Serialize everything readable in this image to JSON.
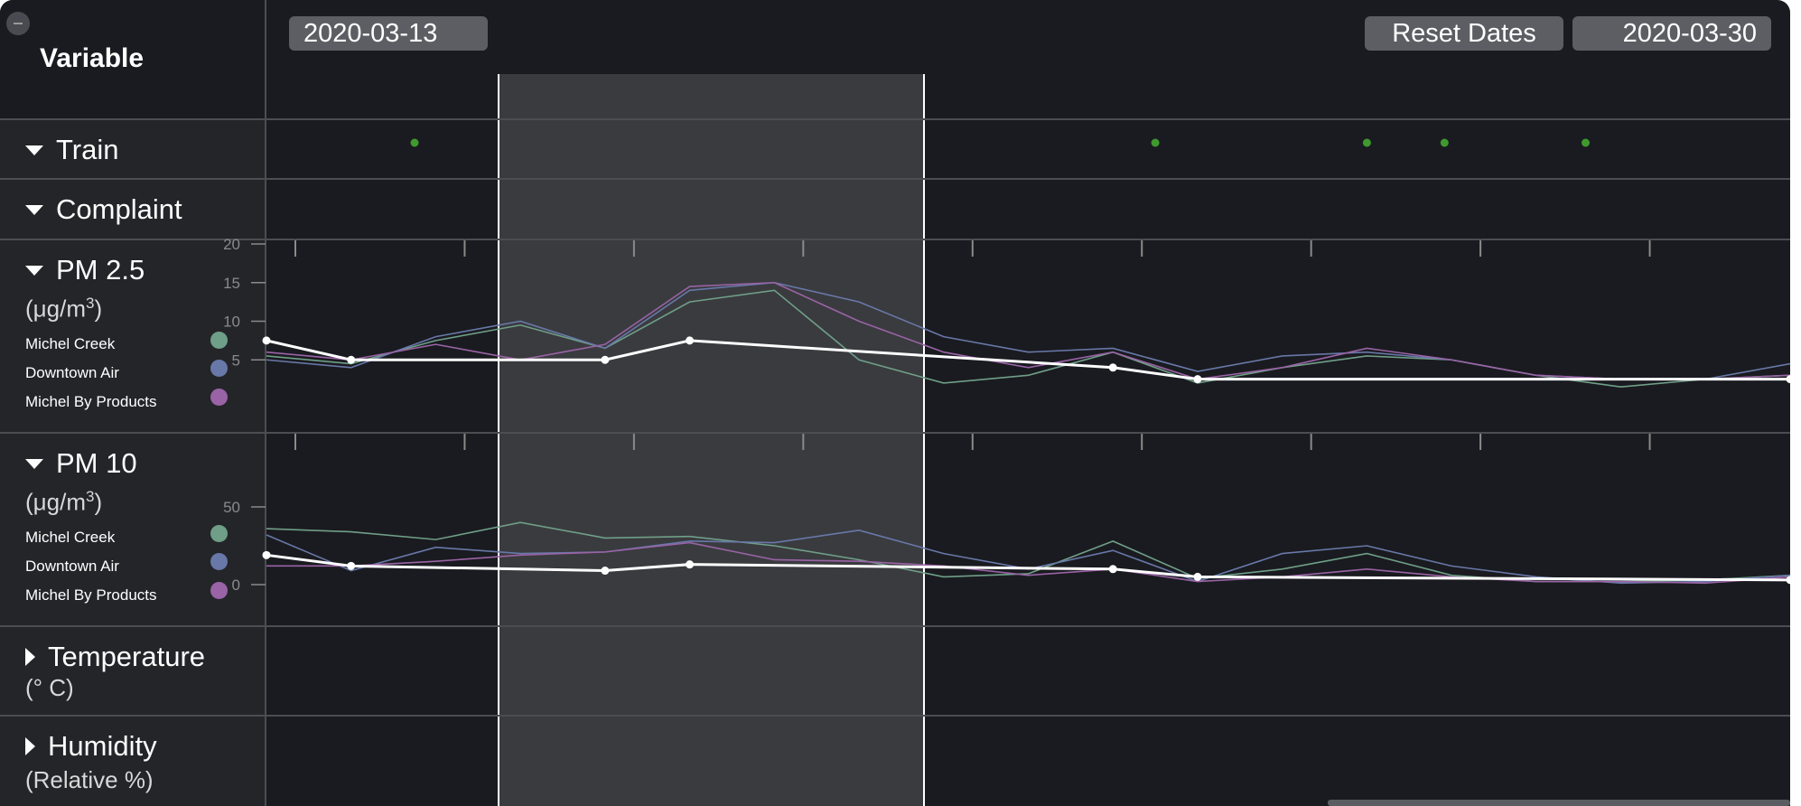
{
  "header": {
    "variable_title": "Variable",
    "start_date": "2020-03-13",
    "end_date": "2020-03-30",
    "reset_label": "Reset Dates"
  },
  "rows": {
    "train": {
      "label": "Train",
      "expanded": true
    },
    "complaint": {
      "label": "Complaint",
      "expanded": true
    },
    "pm25": {
      "label": "PM 2.5",
      "unit_prefix": "(μg/m",
      "unit_sup": "3",
      "unit_suffix": ")",
      "expanded": true
    },
    "pm10": {
      "label": "PM 10",
      "unit_prefix": "(μg/m",
      "unit_sup": "3",
      "unit_suffix": ")",
      "expanded": true
    },
    "temperature": {
      "label": "Temperature",
      "unit": "(° C)",
      "expanded": false
    },
    "humidity": {
      "label": "Humidity",
      "unit": "(Relative %)",
      "expanded": false
    }
  },
  "legend": [
    {
      "name": "Michel Creek",
      "color": "#6f9f88"
    },
    {
      "name": "Downtown Air",
      "color": "#6878a8"
    },
    {
      "name": "Michel By Products",
      "color": "#9a63a6"
    }
  ],
  "colors": {
    "average": "#ffffff",
    "train_dot": "#3f9a2e",
    "brush": "#3a3b3f"
  },
  "chart_data": [
    {
      "type": "scatter",
      "name_in_ui": "Train",
      "x": [
        "2020-03-13T18:00",
        "2020-03-22T12:00",
        "2020-03-25T00:00",
        "2020-03-25T22:00",
        "2020-03-27T14:00"
      ],
      "y": [
        1,
        1,
        1,
        1,
        1
      ]
    },
    {
      "type": "line",
      "name_in_ui": "PM 2.5",
      "ylim": [
        0,
        20
      ],
      "yticks": [
        5,
        10,
        15,
        20
      ],
      "x": [
        "2020-03-12",
        "2020-03-13",
        "2020-03-14",
        "2020-03-15",
        "2020-03-16",
        "2020-03-17",
        "2020-03-18",
        "2020-03-19",
        "2020-03-20",
        "2020-03-21",
        "2020-03-22",
        "2020-03-23",
        "2020-03-24",
        "2020-03-25",
        "2020-03-26",
        "2020-03-27",
        "2020-03-28",
        "2020-03-29",
        "2020-03-30"
      ],
      "series": [
        {
          "name": "Michel Creek",
          "values": [
            5.5,
            4.5,
            7.5,
            9.5,
            6.5,
            12.5,
            14,
            5,
            2,
            3,
            6,
            2,
            4,
            5.5,
            5,
            3,
            1.5,
            2.5,
            3
          ]
        },
        {
          "name": "Downtown Air",
          "values": [
            5,
            4,
            8,
            10,
            6.5,
            14,
            15,
            12.5,
            8,
            6,
            6.5,
            3.5,
            5.5,
            6,
            5,
            3,
            2.5,
            2.5,
            4.5
          ]
        },
        {
          "name": "Michel By Products",
          "values": [
            6,
            5,
            7,
            5,
            7,
            14.5,
            15,
            10,
            6,
            4,
            6,
            2.5,
            4,
            6.5,
            5,
            3,
            2.5,
            2.5,
            3
          ]
        }
      ],
      "average": {
        "x": [
          "2020-03-12",
          "2020-03-13",
          "2020-03-16",
          "2020-03-17",
          "2020-03-22",
          "2020-03-23",
          "2020-03-30"
        ],
        "values": [
          7.5,
          5,
          5,
          7.5,
          4,
          2.5,
          2.5
        ]
      }
    },
    {
      "type": "line",
      "name_in_ui": "PM 10",
      "yticks": [
        0,
        50
      ],
      "x": [
        "2020-03-12",
        "2020-03-13",
        "2020-03-14",
        "2020-03-15",
        "2020-03-16",
        "2020-03-17",
        "2020-03-18",
        "2020-03-19",
        "2020-03-20",
        "2020-03-21",
        "2020-03-22",
        "2020-03-23",
        "2020-03-24",
        "2020-03-25",
        "2020-03-26",
        "2020-03-27",
        "2020-03-28",
        "2020-03-29",
        "2020-03-30"
      ],
      "series": [
        {
          "name": "Michel Creek",
          "values": [
            36,
            34,
            29,
            40,
            30,
            31,
            25,
            16,
            5,
            7,
            28,
            4,
            10,
            20,
            6,
            2,
            2,
            3,
            6
          ]
        },
        {
          "name": "Downtown Air",
          "values": [
            32,
            9,
            24,
            20,
            21,
            28,
            27,
            35,
            20,
            10,
            22,
            2,
            20,
            25,
            12,
            5,
            1,
            2,
            6
          ]
        },
        {
          "name": "Michel By Products",
          "values": [
            12,
            12,
            15,
            19,
            21,
            27,
            16,
            15,
            12,
            6,
            10,
            2,
            5,
            10,
            5,
            2,
            2,
            1,
            5
          ]
        }
      ],
      "average": {
        "x": [
          "2020-03-12",
          "2020-03-13",
          "2020-03-16",
          "2020-03-17",
          "2020-03-22",
          "2020-03-23",
          "2020-03-30"
        ],
        "values": [
          19,
          12,
          9,
          13,
          10,
          5,
          3
        ]
      }
    }
  ]
}
